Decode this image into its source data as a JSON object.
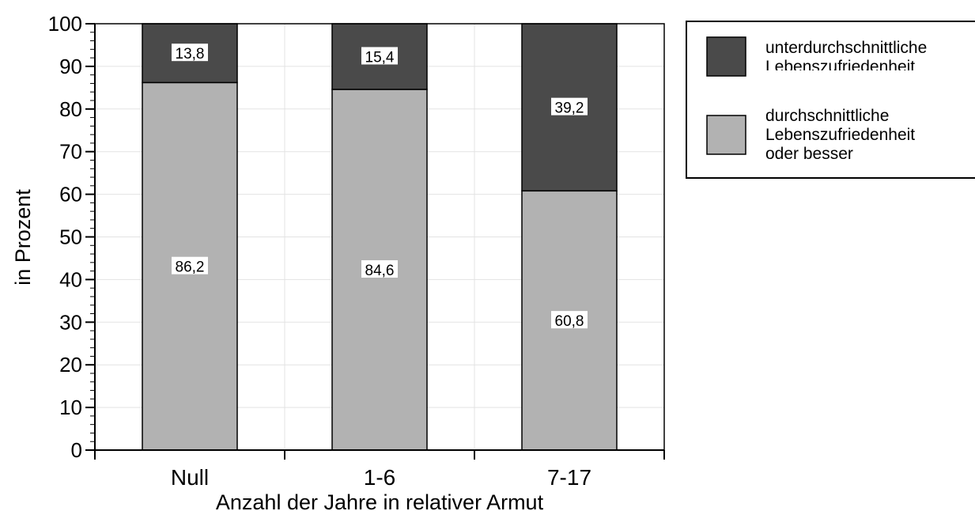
{
  "chart_data": {
    "type": "bar",
    "stacked": true,
    "categories": [
      "Null",
      "1-6",
      "7-17"
    ],
    "series": [
      {
        "name": "durchschnittliche Lebenszufriedenheit oder besser",
        "values": [
          86.2,
          84.6,
          60.8
        ],
        "labels": [
          "86,2",
          "84,6",
          "60,8"
        ],
        "color": "#b2b2b2"
      },
      {
        "name": "unterdurchschnittliche Lebenszufriedenheit",
        "values": [
          13.8,
          15.4,
          39.2
        ],
        "labels": [
          "13,8",
          "15,4",
          "39,2"
        ],
        "color": "#4a4a4a"
      }
    ],
    "xlabel": "Anzahl der Jahre in relativer Armut",
    "ylabel": "in Prozent",
    "ylim": [
      0,
      100
    ],
    "yticks": [
      0,
      10,
      20,
      30,
      40,
      50,
      60,
      70,
      80,
      90,
      100
    ],
    "grid": true,
    "legend": {
      "position": "top-right",
      "entries": [
        {
          "lines": [
            "unterdurchschnittliche",
            "Lebenszufriedenheit"
          ],
          "color": "#4a4a4a"
        },
        {
          "lines": [
            "durchschnittliche",
            "Lebenszufriedenheit",
            "oder besser"
          ],
          "color": "#b2b2b2"
        }
      ]
    }
  }
}
